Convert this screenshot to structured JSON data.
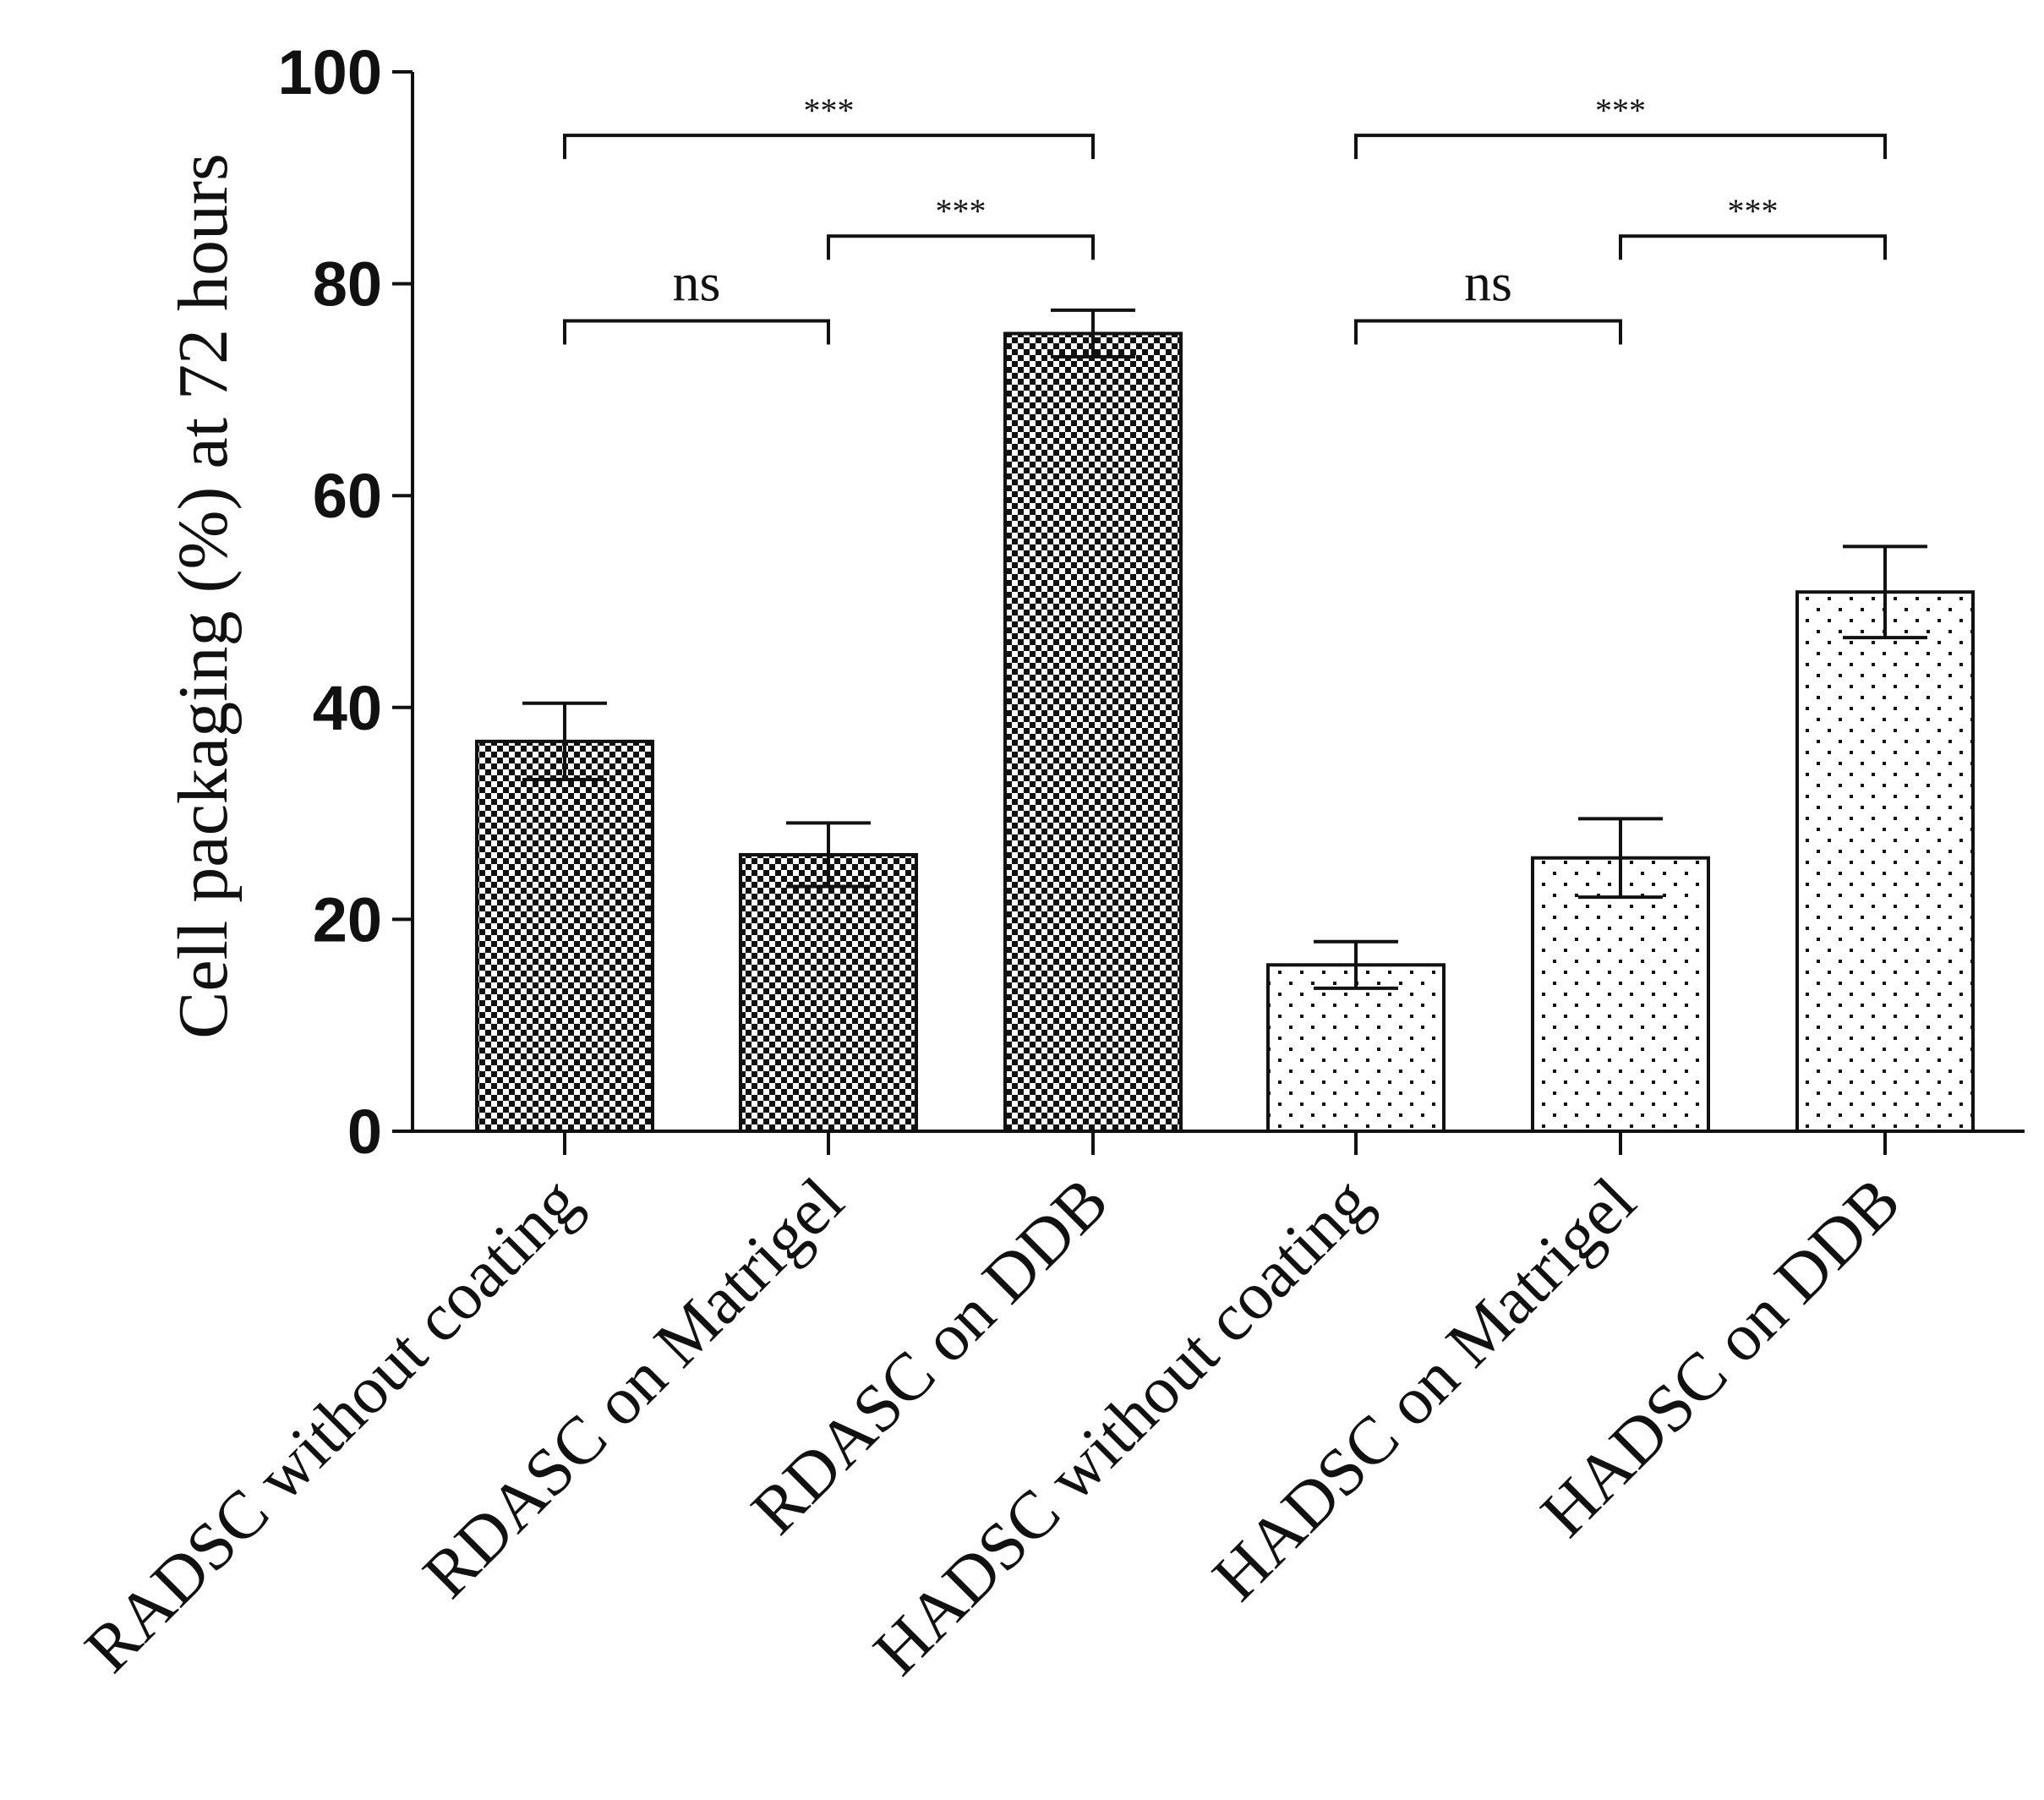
{
  "chart_data": {
    "type": "bar",
    "title": "",
    "xlabel": "",
    "ylabel": "Cell packaging (%) at 72 hours",
    "ylim": [
      0,
      100
    ],
    "yticks": [
      0,
      20,
      40,
      60,
      80,
      100
    ],
    "grid": false,
    "categories": [
      "RADSC without coating",
      "RDASC on Matrigel",
      "RDASC on DDB",
      "HADSC without coating",
      "HADSC on Matrigel",
      "HADSC on DDB"
    ],
    "values": [
      36.8,
      26.1,
      75.3,
      15.7,
      25.8,
      50.9
    ],
    "errors": [
      3.6,
      3.0,
      2.2,
      2.2,
      3.7,
      4.3
    ],
    "patterns": [
      "dense-checker",
      "dense-checker",
      "dense-checker",
      "sparse-dots",
      "sparse-dots",
      "sparse-dots"
    ],
    "significance": [
      {
        "from": 0,
        "to": 1,
        "label": "ns",
        "y": 76.5
      },
      {
        "from": 1,
        "to": 2,
        "label": "***",
        "y": 84.5
      },
      {
        "from": 0,
        "to": 2,
        "label": "***",
        "y": 94
      },
      {
        "from": 3,
        "to": 4,
        "label": "ns",
        "y": 76.5
      },
      {
        "from": 4,
        "to": 5,
        "label": "***",
        "y": 84.5
      },
      {
        "from": 3,
        "to": 5,
        "label": "***",
        "y": 94
      }
    ]
  },
  "colors": {
    "ink": "#111111",
    "background": "#ffffff"
  }
}
